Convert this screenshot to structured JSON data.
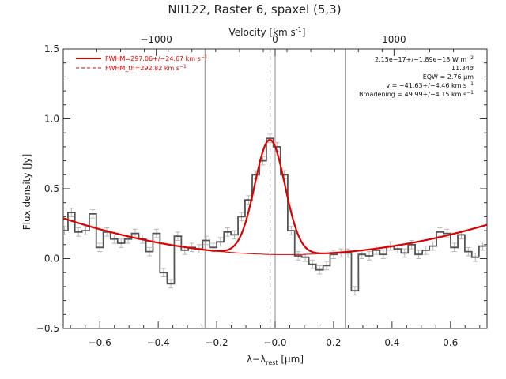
{
  "chart_data": {
    "type": "line",
    "title": "NII122, Raster 6, spaxel (5,3)",
    "xlabel": "λ−λ",
    "xlabel_sub": "rest",
    "xlabel_unit": " [μm]",
    "ylabel": "Flux density [Jy]",
    "top_axis": {
      "label": "Velocity [km s",
      "label_sup": "-1",
      "label_end": "]",
      "ticks": [
        -1000,
        0,
        1000
      ],
      "tick_labels": [
        "−1000",
        "0",
        "1000"
      ],
      "um_per_kms": 0.0004068
    },
    "xlim": [
      -0.725,
      0.725
    ],
    "ylim": [
      -0.5,
      1.5
    ],
    "xticks": [
      -0.6,
      -0.4,
      -0.2,
      0.0,
      0.2,
      0.4,
      0.6
    ],
    "xtick_labels": [
      "−0.6",
      "−0.4",
      "−0.2",
      "−0.0",
      "0.2",
      "0.4",
      "0.6"
    ],
    "yticks": [
      -0.5,
      0.0,
      0.5,
      1.0,
      1.5
    ],
    "ytick_labels": [
      "−0.5",
      "0.0",
      "0.5",
      "1.0",
      "1.5"
    ],
    "grid": false,
    "legend": {
      "placement": "top-left",
      "entries": [
        {
          "label": "FWHM=297.06+/−24.67 km s",
          "sup": "−1",
          "style": "solid",
          "color": "#dd0000"
        },
        {
          "label": "FWHM_th=292.82 km s",
          "sup": "−1",
          "style": "dashed",
          "color": "#dd0000"
        }
      ]
    },
    "annotations": [
      {
        "text": "2.15e−17+/−1.89e−18 W m",
        "sup": "−2"
      },
      {
        "text": "11.34σ",
        "sup": ""
      },
      {
        "text": "EQW = 2.76 μm",
        "sup": ""
      },
      {
        "text": "v = −41.63+/−4.46 km s",
        "sup": "−1"
      },
      {
        "text": "Broadening = 49.99+/−4.15 km s",
        "sup": "−1"
      }
    ],
    "vertical_lines": {
      "solid": [
        -0.24,
        0.0,
        0.24
      ],
      "dashed": [
        -0.017
      ]
    },
    "spectrum": {
      "name": "data",
      "color": "#555555",
      "bin_width": 0.0242,
      "x": [
        -0.721,
        -0.697,
        -0.673,
        -0.648,
        -0.624,
        -0.6,
        -0.576,
        -0.551,
        -0.527,
        -0.503,
        -0.479,
        -0.454,
        -0.43,
        -0.406,
        -0.382,
        -0.357,
        -0.333,
        -0.309,
        -0.285,
        -0.26,
        -0.236,
        -0.212,
        -0.188,
        -0.163,
        -0.139,
        -0.115,
        -0.091,
        -0.066,
        -0.042,
        -0.018,
        0.006,
        0.031,
        0.055,
        0.079,
        0.103,
        0.128,
        0.152,
        0.176,
        0.2,
        0.225,
        0.249,
        0.273,
        0.297,
        0.322,
        0.346,
        0.37,
        0.394,
        0.419,
        0.443,
        0.467,
        0.491,
        0.516,
        0.54,
        0.564,
        0.588,
        0.613,
        0.637,
        0.661,
        0.685,
        0.71
      ],
      "y": [
        0.2,
        0.33,
        0.19,
        0.2,
        0.32,
        0.08,
        0.19,
        0.14,
        0.11,
        0.14,
        0.18,
        0.14,
        0.05,
        0.18,
        -0.1,
        -0.18,
        0.16,
        0.06,
        0.08,
        0.07,
        0.13,
        0.08,
        0.12,
        0.19,
        0.17,
        0.3,
        0.42,
        0.6,
        0.7,
        0.86,
        0.8,
        0.6,
        0.2,
        0.02,
        0.01,
        -0.04,
        -0.08,
        -0.05,
        0.03,
        0.04,
        0.04,
        -0.23,
        0.03,
        0.02,
        0.06,
        0.03,
        0.09,
        0.07,
        0.04,
        0.1,
        0.03,
        0.06,
        0.09,
        0.19,
        0.18,
        0.08,
        0.17,
        0.05,
        0.01,
        0.09
      ]
    },
    "fit": {
      "name": "fit",
      "color": "#dd0000",
      "baseline_coeffs": [
        0.03,
        -0.05,
        0.45
      ],
      "baseline_center": -0.02,
      "gauss_amp": 0.82,
      "gauss_center": -0.018,
      "gauss_sigma": 0.0515
    }
  }
}
